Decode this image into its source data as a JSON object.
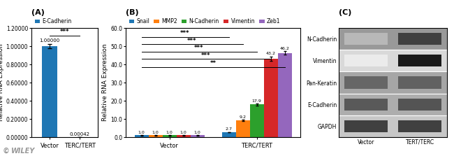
{
  "chart_data": [
    {
      "type": "bar",
      "title": "(A)",
      "y_label": "Relative RNA Expression",
      "categories": [
        "Vector",
        "TERC/TERT"
      ],
      "series": [
        {
          "name": "E-Cadherin",
          "values": [
            1.0,
            0.00042
          ],
          "errors": [
            0.025,
            5e-05
          ],
          "value_labels": [
            "1.00000",
            "0.00042"
          ]
        }
      ],
      "ylim": [
        0,
        1.2
      ],
      "yticks": [
        {
          "value": 0.0,
          "label": "0.00000"
        },
        {
          "value": 0.2,
          "label": "0.20000"
        },
        {
          "value": 0.4,
          "label": "0.40000"
        },
        {
          "value": 0.6,
          "label": "0.60000"
        },
        {
          "value": 0.8,
          "label": "0.80000"
        },
        {
          "value": 1.0,
          "label": "1.00000"
        },
        {
          "value": 1.2,
          "label": "1.20000"
        }
      ],
      "data_labels": true,
      "legend": "top",
      "annotations": [
        {
          "text": "***",
          "from": "Vector",
          "to": "TERC/TERT"
        }
      ]
    },
    {
      "type": "bar",
      "title": "(B)",
      "y_label": "Relative RNA Expression",
      "categories": [
        "Vector",
        "TERC/TERT"
      ],
      "series": [
        {
          "name": "Snail",
          "values": [
            1.0,
            2.7
          ],
          "errors": [
            0.05,
            0.15
          ],
          "value_labels": [
            "1.0",
            "2.7"
          ]
        },
        {
          "name": "MMP2",
          "values": [
            1.0,
            9.2
          ],
          "errors": [
            0.05,
            0.4
          ],
          "value_labels": [
            "1.0",
            "9.2"
          ]
        },
        {
          "name": "N-Cadherin",
          "values": [
            1.0,
            17.9
          ],
          "errors": [
            0.05,
            0.5
          ],
          "value_labels": [
            "1.0",
            "17.9"
          ]
        },
        {
          "name": "Vimentin",
          "values": [
            1.0,
            43.2
          ],
          "errors": [
            0.05,
            1.2
          ],
          "value_labels": [
            "1.0",
            "43.2"
          ]
        },
        {
          "name": "Zeb1",
          "values": [
            1.0,
            46.2
          ],
          "errors": [
            0.05,
            1.0
          ],
          "value_labels": [
            "1.0",
            "46.2"
          ]
        }
      ],
      "ylim": [
        0,
        60
      ],
      "yticks": [
        {
          "value": 0.0,
          "label": "0.0"
        },
        {
          "value": 10.0,
          "label": "10.0"
        },
        {
          "value": 20.0,
          "label": "20.0"
        },
        {
          "value": 30.0,
          "label": "30.0"
        },
        {
          "value": 40.0,
          "label": "40.0"
        },
        {
          "value": 50.0,
          "label": "50.0"
        },
        {
          "value": 60.0,
          "label": "60.0"
        }
      ],
      "data_labels": true,
      "legend": "top",
      "annotations": [
        {
          "text": "**",
          "y": 38.5,
          "from": [
            "Vector",
            "Snail"
          ],
          "to": [
            "TERC/TERT",
            "Zeb1"
          ]
        },
        {
          "text": "***",
          "y": 43.0,
          "from": [
            "Vector",
            "Snail"
          ],
          "to": [
            "TERC/TERT",
            "Vimentin"
          ]
        },
        {
          "text": "***",
          "y": 47.0,
          "from": [
            "Vector",
            "Snail"
          ],
          "to": [
            "TERC/TERT",
            "N-Cadherin"
          ]
        },
        {
          "text": "***",
          "y": 51.0,
          "from": [
            "Vector",
            "Snail"
          ],
          "to": [
            "TERC/TERT",
            "MMP2"
          ]
        },
        {
          "text": "***",
          "y": 55.0,
          "from": [
            "Vector",
            "Snail"
          ],
          "to": [
            "TERC/TERT",
            "Snail"
          ]
        }
      ]
    },
    {
      "type": "heatmap",
      "title": "(C)",
      "x_categories": [
        "Vector",
        "TERT/TERC"
      ],
      "y_categories": [
        "N-Cadherin",
        "Vimentin",
        "Pan-Keratin",
        "E-Cadherin",
        "GAPDH"
      ],
      "cells": [
        [
          0.72,
          0.25
        ],
        [
          0.92,
          0.1
        ],
        [
          0.4,
          0.38
        ],
        [
          0.35,
          0.33
        ],
        [
          0.25,
          0.25
        ]
      ],
      "background": [
        0.6,
        0.85,
        0.65,
        0.68,
        0.78
      ]
    }
  ],
  "annotations": [
    "©",
    "WILEY"
  ]
}
